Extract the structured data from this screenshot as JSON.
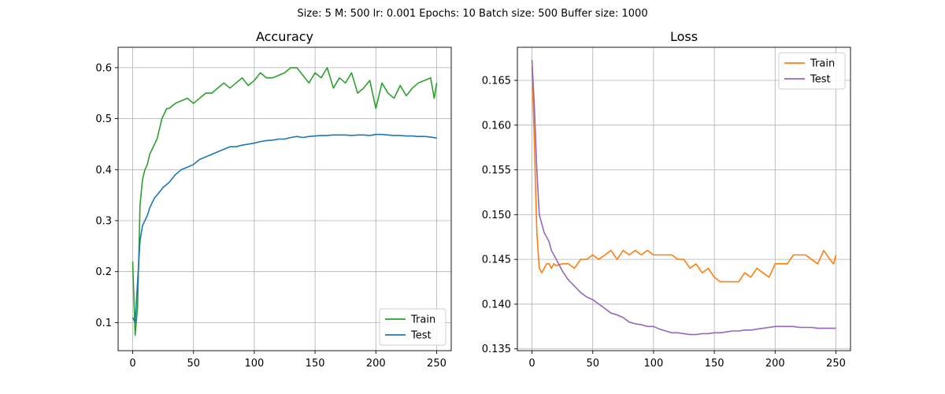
{
  "figure_title": "Size: 5   M: 500   lr: 0.001   Epochs: 10   Batch size: 500   Buffer size: 1000",
  "chart_data": [
    {
      "type": "line",
      "title": "Accuracy",
      "xlabel": "",
      "ylabel": "",
      "xlim": [
        -12,
        262
      ],
      "ylim": [
        0.045,
        0.64
      ],
      "xticks": [
        0,
        50,
        100,
        150,
        200,
        250
      ],
      "yticks": [
        0.1,
        0.2,
        0.3,
        0.4,
        0.5,
        0.6
      ],
      "ytick_labels": [
        "0.1",
        "0.2",
        "0.3",
        "0.4",
        "0.5",
        "0.6"
      ],
      "grid": true,
      "legend_position": "bottom-right",
      "series": [
        {
          "name": "Train",
          "color": "#2ca02c",
          "x": [
            0,
            2,
            4,
            6,
            8,
            10,
            12,
            14,
            16,
            18,
            20,
            22,
            24,
            26,
            28,
            30,
            35,
            40,
            45,
            50,
            55,
            60,
            65,
            70,
            75,
            80,
            85,
            90,
            95,
            100,
            105,
            110,
            115,
            120,
            125,
            130,
            135,
            140,
            145,
            150,
            155,
            160,
            165,
            170,
            175,
            180,
            185,
            190,
            195,
            200,
            205,
            210,
            215,
            220,
            225,
            230,
            235,
            240,
            245,
            248,
            250
          ],
          "y": [
            0.22,
            0.075,
            0.13,
            0.33,
            0.38,
            0.4,
            0.41,
            0.43,
            0.44,
            0.45,
            0.46,
            0.48,
            0.5,
            0.51,
            0.52,
            0.52,
            0.53,
            0.535,
            0.54,
            0.53,
            0.54,
            0.55,
            0.55,
            0.56,
            0.57,
            0.56,
            0.57,
            0.58,
            0.565,
            0.575,
            0.59,
            0.58,
            0.58,
            0.585,
            0.59,
            0.6,
            0.6,
            0.585,
            0.57,
            0.59,
            0.58,
            0.6,
            0.56,
            0.58,
            0.57,
            0.59,
            0.55,
            0.56,
            0.575,
            0.52,
            0.57,
            0.55,
            0.54,
            0.565,
            0.545,
            0.56,
            0.57,
            0.575,
            0.58,
            0.54,
            0.57
          ]
        },
        {
          "name": "Test",
          "color": "#1f77b4",
          "x": [
            0,
            2,
            4,
            6,
            8,
            10,
            12,
            14,
            16,
            18,
            20,
            25,
            30,
            35,
            40,
            45,
            50,
            55,
            60,
            65,
            70,
            75,
            80,
            85,
            90,
            95,
            100,
            105,
            110,
            115,
            120,
            125,
            130,
            135,
            140,
            145,
            150,
            155,
            160,
            165,
            170,
            175,
            180,
            185,
            190,
            195,
            200,
            205,
            210,
            215,
            220,
            225,
            230,
            235,
            240,
            245,
            250
          ],
          "y": [
            0.11,
            0.1,
            0.18,
            0.26,
            0.29,
            0.3,
            0.31,
            0.325,
            0.335,
            0.345,
            0.35,
            0.365,
            0.375,
            0.39,
            0.4,
            0.405,
            0.41,
            0.42,
            0.425,
            0.43,
            0.435,
            0.44,
            0.445,
            0.445,
            0.448,
            0.45,
            0.452,
            0.455,
            0.457,
            0.458,
            0.46,
            0.46,
            0.463,
            0.465,
            0.463,
            0.465,
            0.466,
            0.467,
            0.467,
            0.468,
            0.468,
            0.468,
            0.467,
            0.468,
            0.468,
            0.467,
            0.469,
            0.469,
            0.468,
            0.467,
            0.467,
            0.466,
            0.466,
            0.465,
            0.465,
            0.464,
            0.462
          ]
        }
      ]
    },
    {
      "type": "line",
      "title": "Loss",
      "xlabel": "",
      "ylabel": "",
      "xlim": [
        -12,
        262
      ],
      "ylim": [
        0.1348,
        0.1687
      ],
      "xticks": [
        0,
        50,
        100,
        150,
        200,
        250
      ],
      "yticks": [
        0.135,
        0.14,
        0.145,
        0.15,
        0.155,
        0.16,
        0.165
      ],
      "ytick_labels": [
        "0.135",
        "0.140",
        "0.145",
        "0.150",
        "0.155",
        "0.160",
        "0.165"
      ],
      "grid": true,
      "legend_position": "top-right",
      "series": [
        {
          "name": "Train",
          "color": "#ff7f0e",
          "x": [
            0,
            2,
            4,
            6,
            8,
            10,
            12,
            14,
            16,
            18,
            20,
            25,
            30,
            35,
            40,
            45,
            50,
            55,
            60,
            65,
            70,
            75,
            80,
            85,
            90,
            95,
            100,
            105,
            110,
            115,
            120,
            125,
            130,
            135,
            140,
            145,
            150,
            155,
            160,
            165,
            170,
            175,
            180,
            185,
            190,
            195,
            200,
            205,
            210,
            215,
            220,
            225,
            230,
            235,
            240,
            245,
            248,
            250
          ],
          "y": [
            0.1665,
            0.158,
            0.148,
            0.144,
            0.1435,
            0.144,
            0.1445,
            0.1445,
            0.144,
            0.1445,
            0.1443,
            0.1445,
            0.1445,
            0.144,
            0.145,
            0.145,
            0.1455,
            0.145,
            0.1455,
            0.146,
            0.145,
            0.146,
            0.1455,
            0.146,
            0.1455,
            0.146,
            0.1455,
            0.1455,
            0.1455,
            0.1455,
            0.145,
            0.145,
            0.144,
            0.1445,
            0.1435,
            0.144,
            0.143,
            0.1425,
            0.1425,
            0.1425,
            0.1425,
            0.1435,
            0.143,
            0.144,
            0.1435,
            0.143,
            0.1445,
            0.1445,
            0.1445,
            0.1455,
            0.1455,
            0.1455,
            0.145,
            0.1445,
            0.146,
            0.145,
            0.1445,
            0.1455
          ]
        },
        {
          "name": "Test",
          "color": "#9467bd",
          "x": [
            0,
            2,
            4,
            6,
            8,
            10,
            12,
            14,
            16,
            18,
            20,
            25,
            30,
            35,
            40,
            45,
            50,
            55,
            60,
            65,
            70,
            75,
            80,
            85,
            90,
            95,
            100,
            105,
            110,
            115,
            120,
            125,
            130,
            135,
            140,
            145,
            150,
            155,
            160,
            165,
            170,
            175,
            180,
            185,
            190,
            195,
            200,
            205,
            210,
            215,
            220,
            225,
            230,
            235,
            240,
            245,
            250
          ],
          "y": [
            0.1673,
            0.162,
            0.155,
            0.15,
            0.149,
            0.148,
            0.1475,
            0.147,
            0.146,
            0.1455,
            0.145,
            0.1437,
            0.1427,
            0.142,
            0.1413,
            0.1408,
            0.1405,
            0.14,
            0.1395,
            0.139,
            0.1388,
            0.1385,
            0.138,
            0.1378,
            0.1377,
            0.1375,
            0.1375,
            0.1372,
            0.137,
            0.1368,
            0.1368,
            0.1367,
            0.1366,
            0.1366,
            0.1367,
            0.1367,
            0.1368,
            0.1368,
            0.1369,
            0.137,
            0.137,
            0.1371,
            0.1371,
            0.1372,
            0.1373,
            0.1374,
            0.1375,
            0.1375,
            0.1375,
            0.1375,
            0.1374,
            0.1374,
            0.1374,
            0.1373,
            0.1373,
            0.1373,
            0.1373
          ]
        }
      ]
    }
  ]
}
